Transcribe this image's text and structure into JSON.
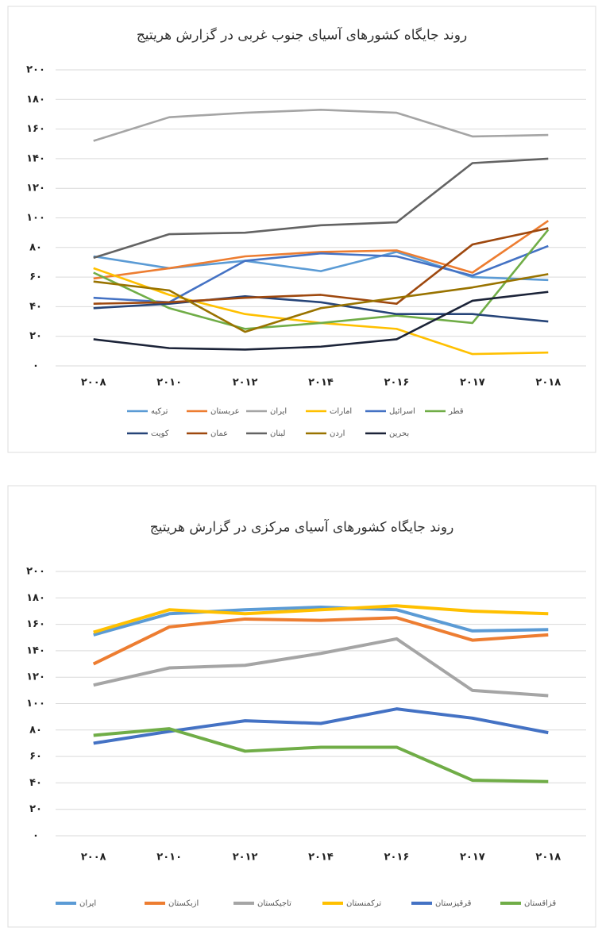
{
  "chart_data": [
    {
      "type": "line",
      "title": "روند جایگاه کشورهای آسیای جنوب غربی در گزارش هریتیج",
      "categories": [
        "۲۰۰۸",
        "۲۰۱۰",
        "۲۰۱۲",
        "۲۰۱۴",
        "۲۰۱۶",
        "۲۰۱۷",
        "۲۰۱۸"
      ],
      "ylim": [
        0,
        200
      ],
      "yticks": [
        {
          "value": 0,
          "label": "۰"
        },
        {
          "value": 20,
          "label": "۲۰"
        },
        {
          "value": 40,
          "label": "۴۰"
        },
        {
          "value": 60,
          "label": "۶۰"
        },
        {
          "value": 80,
          "label": "۸۰"
        },
        {
          "value": 100,
          "label": "۱۰۰"
        },
        {
          "value": 120,
          "label": "۱۲۰"
        },
        {
          "value": 140,
          "label": "۱۴۰"
        },
        {
          "value": 160,
          "label": "۱۶۰"
        },
        {
          "value": 180,
          "label": "۱۸۰"
        },
        {
          "value": 200,
          "label": "۲۰۰"
        }
      ],
      "grid": true,
      "legend": "bottom",
      "series": [
        {
          "name": "ترکیه",
          "color": "#5b9bd5",
          "values": [
            74,
            66,
            71,
            64,
            77,
            60,
            58
          ]
        },
        {
          "name": "عربستان",
          "color": "#ed7d31",
          "values": [
            59,
            66,
            74,
            77,
            78,
            63,
            98
          ]
        },
        {
          "name": "ایران",
          "color": "#a5a5a5",
          "values": [
            152,
            168,
            171,
            173,
            171,
            155,
            156
          ]
        },
        {
          "name": "امارات",
          "color": "#ffc000",
          "values": [
            66,
            48,
            35,
            29,
            25,
            8,
            9
          ]
        },
        {
          "name": "اسرائیل",
          "color": "#4472c4",
          "values": [
            46,
            43,
            71,
            76,
            74,
            61,
            81
          ]
        },
        {
          "name": "قطر",
          "color": "#70ad47",
          "values": [
            63,
            39,
            25,
            29,
            34,
            29,
            92
          ]
        },
        {
          "name": "کویت",
          "color": "#264478",
          "values": [
            39,
            42,
            47,
            43,
            35,
            35,
            30
          ]
        },
        {
          "name": "عمان",
          "color": "#9e480e",
          "values": [
            42,
            43,
            46,
            48,
            42,
            82,
            93
          ]
        },
        {
          "name": "لبنان",
          "color": "#636363",
          "values": [
            73,
            89,
            90,
            95,
            97,
            137,
            140
          ]
        },
        {
          "name": "اردن",
          "color": "#997300",
          "values": [
            57,
            51,
            23,
            39,
            46,
            53,
            62
          ]
        },
        {
          "name": "بحرین",
          "color": "#1b2338",
          "values": [
            18,
            12,
            11,
            13,
            18,
            44,
            50
          ]
        }
      ]
    },
    {
      "type": "line",
      "title": "روند جایگاه کشورهای آسیای مرکزی در گزارش هریتیج",
      "categories": [
        "۲۰۰۸",
        "۲۰۱۰",
        "۲۰۱۲",
        "۲۰۱۴",
        "۲۰۱۶",
        "۲۰۱۷",
        "۲۰۱۸"
      ],
      "ylim": [
        0,
        200
      ],
      "yticks": [
        {
          "value": 0,
          "label": "۰"
        },
        {
          "value": 20,
          "label": "۲۰"
        },
        {
          "value": 40,
          "label": "۴۰"
        },
        {
          "value": 60,
          "label": "۶۰"
        },
        {
          "value": 80,
          "label": "۸۰"
        },
        {
          "value": 100,
          "label": "۱۰۰"
        },
        {
          "value": 120,
          "label": "۱۲۰"
        },
        {
          "value": 140,
          "label": "۱۴۰"
        },
        {
          "value": 160,
          "label": "۱۶۰"
        },
        {
          "value": 180,
          "label": "۱۸۰"
        },
        {
          "value": 200,
          "label": "۲۰۰"
        }
      ],
      "grid": true,
      "legend": "bottom",
      "series": [
        {
          "name": "ایران",
          "color": "#5b9bd5",
          "values": [
            152,
            168,
            171,
            173,
            171,
            155,
            156
          ]
        },
        {
          "name": "ازبکستان",
          "color": "#ed7d31",
          "values": [
            130,
            158,
            164,
            163,
            165,
            148,
            152
          ]
        },
        {
          "name": "تاجیکستان",
          "color": "#a5a5a5",
          "values": [
            114,
            127,
            129,
            138,
            149,
            110,
            106
          ]
        },
        {
          "name": "ترکمنستان",
          "color": "#ffc000",
          "values": [
            154,
            171,
            168,
            171,
            174,
            170,
            168
          ]
        },
        {
          "name": "قرقیزستان",
          "color": "#4472c4",
          "values": [
            70,
            79,
            87,
            85,
            96,
            89,
            78
          ]
        },
        {
          "name": "قزاقستان",
          "color": "#70ad47",
          "values": [
            76,
            81,
            64,
            67,
            67,
            42,
            41
          ]
        }
      ]
    }
  ]
}
